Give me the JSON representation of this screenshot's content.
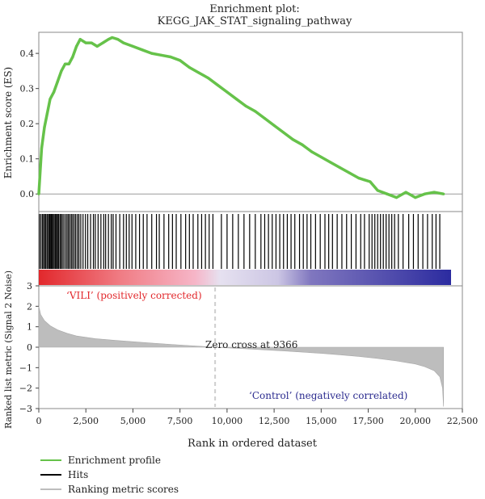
{
  "chart_data": {
    "type": "line",
    "title_line1": "Enrichment plot:",
    "title_line2": "KEGG_JAK_STAT_signaling_pathway",
    "xlabel": "Rank in ordered dataset",
    "xlim": [
      0,
      22500
    ],
    "xticks": [
      "0",
      "2,500",
      "5,000",
      "7,500",
      "10,000",
      "12,500",
      "15,000",
      "17,500",
      "20,000",
      "22,500"
    ],
    "n_ranked": 21500,
    "es_panel": {
      "ylabel": "Enrichment score (ES)",
      "ylim": [
        -0.05,
        0.46
      ],
      "yticks": [
        "0.0",
        "0.1",
        "0.2",
        "0.3",
        "0.4"
      ],
      "series": [
        {
          "name": "Enrichment profile",
          "color": "#66c24a",
          "x": [
            0,
            150,
            300,
            450,
            600,
            800,
            1000,
            1200,
            1400,
            1600,
            1800,
            2000,
            2200,
            2500,
            2800,
            3100,
            3400,
            3700,
            3900,
            4200,
            4500,
            5000,
            5500,
            6000,
            6500,
            7000,
            7500,
            8000,
            8500,
            9000,
            9500,
            10000,
            10500,
            11000,
            11500,
            12000,
            12500,
            13000,
            13500,
            14000,
            14500,
            15000,
            15500,
            16000,
            16500,
            17000,
            17300,
            17600,
            18000,
            18500,
            19000,
            19500,
            20000,
            20500,
            21000,
            21500
          ],
          "y": [
            0.0,
            0.13,
            0.19,
            0.23,
            0.27,
            0.29,
            0.32,
            0.35,
            0.37,
            0.37,
            0.39,
            0.42,
            0.44,
            0.43,
            0.43,
            0.42,
            0.43,
            0.44,
            0.445,
            0.44,
            0.43,
            0.42,
            0.41,
            0.4,
            0.395,
            0.39,
            0.38,
            0.36,
            0.345,
            0.33,
            0.31,
            0.29,
            0.27,
            0.25,
            0.235,
            0.215,
            0.195,
            0.175,
            0.155,
            0.14,
            0.12,
            0.105,
            0.09,
            0.075,
            0.06,
            0.045,
            0.04,
            0.035,
            0.01,
            0.0,
            -0.01,
            0.005,
            -0.01,
            0.0,
            0.005,
            0.0
          ]
        }
      ]
    },
    "hits_panel": {
      "name": "Hits",
      "color": "#000000",
      "positions": [
        40,
        120,
        200,
        260,
        330,
        380,
        450,
        520,
        560,
        610,
        660,
        700,
        760,
        820,
        880,
        940,
        990,
        1050,
        1120,
        1180,
        1250,
        1330,
        1420,
        1500,
        1570,
        1650,
        1730,
        1800,
        1880,
        1960,
        2050,
        2130,
        2230,
        2350,
        2480,
        2600,
        2750,
        2900,
        3000,
        3150,
        3300,
        3450,
        3550,
        3700,
        3850,
        3950,
        4100,
        4300,
        4500,
        4650,
        4800,
        4950,
        5150,
        5350,
        5550,
        5750,
        6000,
        6250,
        6400,
        6650,
        6900,
        7100,
        7300,
        7550,
        7800,
        8000,
        8200,
        8450,
        8650,
        8850,
        9050,
        9250,
        9700,
        10000,
        10300,
        10600,
        10900,
        11200,
        11500,
        11800,
        12000,
        12200,
        12400,
        12600,
        12800,
        13000,
        13200,
        13400,
        13600,
        13850,
        14050,
        14250,
        14450,
        14700,
        14950,
        15200,
        15400,
        15600,
        15850,
        16100,
        16350,
        16600,
        16850,
        17100,
        17300,
        17550,
        17700,
        17850,
        18000,
        18150,
        18300,
        18450,
        18600,
        18750,
        18900,
        19100,
        19350,
        19650,
        19900,
        20150,
        20400,
        20650,
        20900,
        21100,
        21300
      ]
    },
    "gradient_labels": {
      "positive": "‘VILI’ (positively corrected)",
      "positive_color": "#e2282c",
      "negative": "‘Control’ (negatively correlated)",
      "negative_color": "#2b2b8f"
    },
    "metric_panel": {
      "ylabel": "Ranked list metric (Signal 2 Noise)",
      "ylim": [
        -3,
        3
      ],
      "yticks": [
        "−3",
        "−2",
        "−1",
        "0",
        "1",
        "2",
        "3"
      ],
      "series": [
        {
          "name": "Ranking metric scores",
          "color": "#bdbdbd",
          "x": [
            0,
            100,
            300,
            600,
            1000,
            1500,
            2000,
            3000,
            4000,
            5000,
            6000,
            7000,
            8000,
            9000,
            9366,
            10000,
            11000,
            12000,
            13000,
            14000,
            15000,
            16000,
            17000,
            18000,
            19000,
            20000,
            20500,
            21000,
            21300,
            21450,
            21500
          ],
          "y": [
            2.0,
            1.6,
            1.3,
            1.05,
            0.85,
            0.68,
            0.55,
            0.42,
            0.34,
            0.27,
            0.2,
            0.14,
            0.08,
            0.02,
            0.0,
            -0.03,
            -0.08,
            -0.13,
            -0.18,
            -0.24,
            -0.3,
            -0.37,
            -0.45,
            -0.55,
            -0.67,
            -0.82,
            -0.95,
            -1.15,
            -1.45,
            -2.0,
            -2.9
          ]
        }
      ],
      "zero_cross_label": "Zero cross at 9366",
      "zero_cross_x": 9366
    },
    "legend": {
      "placement": "bottom-left",
      "entries": [
        {
          "label": "Enrichment profile",
          "color": "#66c24a"
        },
        {
          "label": "Hits",
          "color": "#000000"
        },
        {
          "label": "Ranking metric scores",
          "color": "#bdbdbd"
        }
      ]
    }
  }
}
